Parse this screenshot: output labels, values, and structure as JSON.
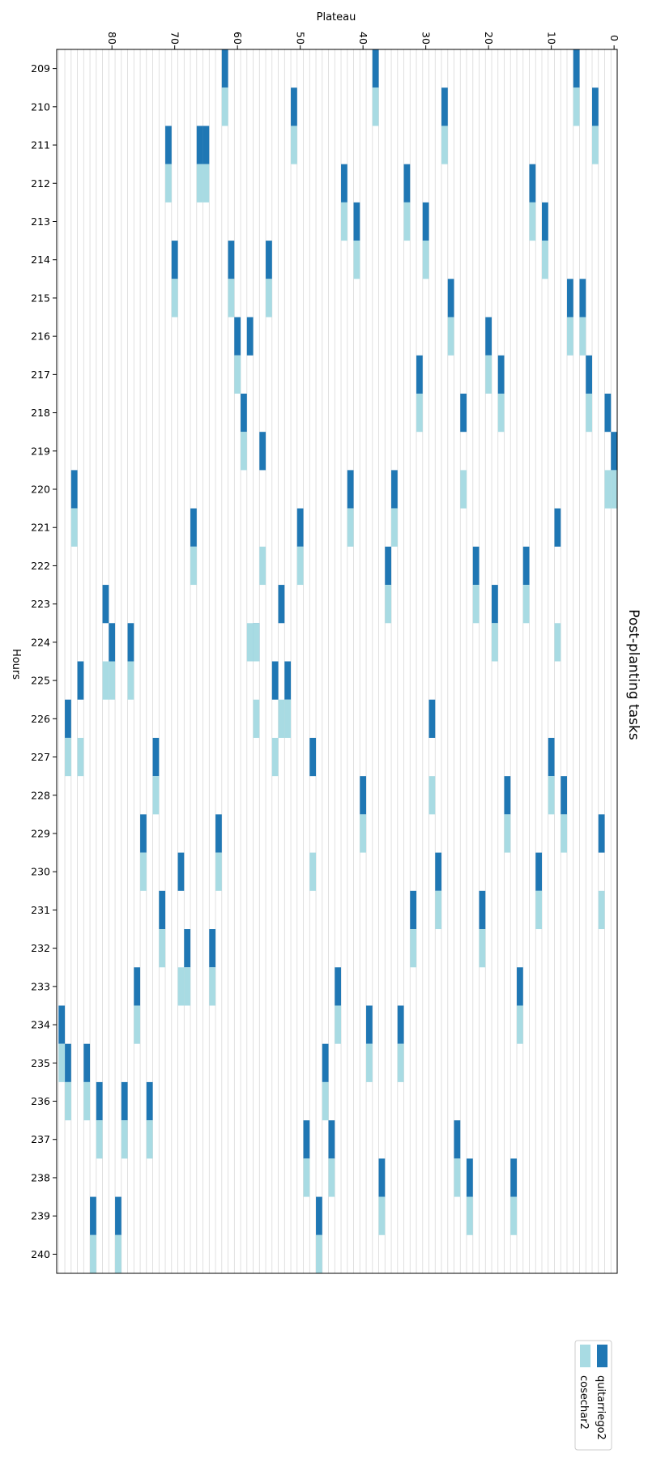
{
  "chart_data": {
    "type": "gantt",
    "title": "Post-planting tasks",
    "xlabel": "Plateau",
    "ylabel": "Hours",
    "orientation": "rotated-90-clockwise",
    "x_range": [
      0,
      88
    ],
    "x_ticks": [
      0,
      10,
      20,
      30,
      40,
      50,
      60,
      70,
      80
    ],
    "y_range": [
      208.5,
      240.5
    ],
    "y_ticks": [
      209,
      210,
      211,
      212,
      213,
      214,
      215,
      216,
      217,
      218,
      219,
      220,
      221,
      222,
      223,
      224,
      225,
      226,
      227,
      228,
      229,
      230,
      231,
      232,
      233,
      234,
      235,
      236,
      237,
      238,
      239,
      240
    ],
    "grid": "vertical-per-plateau",
    "legend_position": "lower-left",
    "colors": {
      "quitarriego2": "#1f77b4",
      "cosechar2": "#a8dbe3",
      "grid": "#d9d9d9"
    },
    "series": [
      {
        "name": "quitarriego2",
        "color": "#1f77b4",
        "tasks": [
          {
            "plateau": 6,
            "hour": 209
          },
          {
            "plateau": 38,
            "hour": 209
          },
          {
            "plateau": 62,
            "hour": 209
          },
          {
            "plateau": 3,
            "hour": 210
          },
          {
            "plateau": 27,
            "hour": 210
          },
          {
            "plateau": 51,
            "hour": 210
          },
          {
            "plateau": 65,
            "hour": 211
          },
          {
            "plateau": 66,
            "hour": 211
          },
          {
            "plateau": 71,
            "hour": 211
          },
          {
            "plateau": 13,
            "hour": 212
          },
          {
            "plateau": 33,
            "hour": 212
          },
          {
            "plateau": 43,
            "hour": 212
          },
          {
            "plateau": 11,
            "hour": 213
          },
          {
            "plateau": 30,
            "hour": 213
          },
          {
            "plateau": 41,
            "hour": 213
          },
          {
            "plateau": 55,
            "hour": 214
          },
          {
            "plateau": 61,
            "hour": 214
          },
          {
            "plateau": 70,
            "hour": 214
          },
          {
            "plateau": 5,
            "hour": 215
          },
          {
            "plateau": 7,
            "hour": 215
          },
          {
            "plateau": 26,
            "hour": 215
          },
          {
            "plateau": 20,
            "hour": 216
          },
          {
            "plateau": 58,
            "hour": 216
          },
          {
            "plateau": 60,
            "hour": 216
          },
          {
            "plateau": 4,
            "hour": 217
          },
          {
            "plateau": 18,
            "hour": 217
          },
          {
            "plateau": 31,
            "hour": 217
          },
          {
            "plateau": 1,
            "hour": 218
          },
          {
            "plateau": 24,
            "hour": 218
          },
          {
            "plateau": 59,
            "hour": 218
          },
          {
            "plateau": 0,
            "hour": 219
          },
          {
            "plateau": 56,
            "hour": 219
          },
          {
            "plateau": 35,
            "hour": 220
          },
          {
            "plateau": 42,
            "hour": 220
          },
          {
            "plateau": 86,
            "hour": 220
          },
          {
            "plateau": 9,
            "hour": 221
          },
          {
            "plateau": 50,
            "hour": 221
          },
          {
            "plateau": 67,
            "hour": 221
          },
          {
            "plateau": 14,
            "hour": 222
          },
          {
            "plateau": 22,
            "hour": 222
          },
          {
            "plateau": 36,
            "hour": 222
          },
          {
            "plateau": 19,
            "hour": 223
          },
          {
            "plateau": 53,
            "hour": 223
          },
          {
            "plateau": 81,
            "hour": 223
          },
          {
            "plateau": 57,
            "hour": 224
          },
          {
            "plateau": 77,
            "hour": 224
          },
          {
            "plateau": 80,
            "hour": 224
          },
          {
            "plateau": 52,
            "hour": 225
          },
          {
            "plateau": 54,
            "hour": 225
          },
          {
            "plateau": 85,
            "hour": 225
          },
          {
            "plateau": 29,
            "hour": 226
          },
          {
            "plateau": 87,
            "hour": 226
          },
          {
            "plateau": 10,
            "hour": 227
          },
          {
            "plateau": 48,
            "hour": 227
          },
          {
            "plateau": 73,
            "hour": 227
          },
          {
            "plateau": 8,
            "hour": 228
          },
          {
            "plateau": 17,
            "hour": 228
          },
          {
            "plateau": 40,
            "hour": 228
          },
          {
            "plateau": 2,
            "hour": 229
          },
          {
            "plateau": 63,
            "hour": 229
          },
          {
            "plateau": 75,
            "hour": 229
          },
          {
            "plateau": 12,
            "hour": 230
          },
          {
            "plateau": 28,
            "hour": 230
          },
          {
            "plateau": 69,
            "hour": 230
          },
          {
            "plateau": 21,
            "hour": 231
          },
          {
            "plateau": 32,
            "hour": 231
          },
          {
            "plateau": 72,
            "hour": 231
          },
          {
            "plateau": 64,
            "hour": 232
          },
          {
            "plateau": 68,
            "hour": 232
          },
          {
            "plateau": 15,
            "hour": 233
          },
          {
            "plateau": 44,
            "hour": 233
          },
          {
            "plateau": 76,
            "hour": 233
          },
          {
            "plateau": 34,
            "hour": 234
          },
          {
            "plateau": 39,
            "hour": 234
          },
          {
            "plateau": 88,
            "hour": 234
          },
          {
            "plateau": 46,
            "hour": 235
          },
          {
            "plateau": 84,
            "hour": 235
          },
          {
            "plateau": 87,
            "hour": 235
          },
          {
            "plateau": 74,
            "hour": 236
          },
          {
            "plateau": 78,
            "hour": 236
          },
          {
            "plateau": 82,
            "hour": 236
          },
          {
            "plateau": 25,
            "hour": 237
          },
          {
            "plateau": 45,
            "hour": 237
          },
          {
            "plateau": 49,
            "hour": 237
          },
          {
            "plateau": 16,
            "hour": 238
          },
          {
            "plateau": 23,
            "hour": 238
          },
          {
            "plateau": 37,
            "hour": 238
          },
          {
            "plateau": 47,
            "hour": 239
          },
          {
            "plateau": 79,
            "hour": 239
          },
          {
            "plateau": 83,
            "hour": 239
          }
        ]
      },
      {
        "name": "cosechar2",
        "color": "#a8dbe3",
        "tasks": [
          {
            "plateau": 6,
            "hour": 210
          },
          {
            "plateau": 38,
            "hour": 210
          },
          {
            "plateau": 62,
            "hour": 210
          },
          {
            "plateau": 3,
            "hour": 211
          },
          {
            "plateau": 27,
            "hour": 211
          },
          {
            "plateau": 51,
            "hour": 211
          },
          {
            "plateau": 65,
            "hour": 212
          },
          {
            "plateau": 66,
            "hour": 212
          },
          {
            "plateau": 71,
            "hour": 212
          },
          {
            "plateau": 13,
            "hour": 213
          },
          {
            "plateau": 33,
            "hour": 213
          },
          {
            "plateau": 43,
            "hour": 213
          },
          {
            "plateau": 11,
            "hour": 214
          },
          {
            "plateau": 30,
            "hour": 214
          },
          {
            "plateau": 41,
            "hour": 214
          },
          {
            "plateau": 55,
            "hour": 215
          },
          {
            "plateau": 61,
            "hour": 215
          },
          {
            "plateau": 70,
            "hour": 215
          },
          {
            "plateau": 5,
            "hour": 216
          },
          {
            "plateau": 7,
            "hour": 216
          },
          {
            "plateau": 26,
            "hour": 216
          },
          {
            "plateau": 20,
            "hour": 217
          },
          {
            "plateau": 60,
            "hour": 217
          },
          {
            "plateau": 4,
            "hour": 218
          },
          {
            "plateau": 18,
            "hour": 218
          },
          {
            "plateau": 31,
            "hour": 218
          },
          {
            "plateau": 59,
            "hour": 219
          },
          {
            "plateau": 0,
            "hour": 220
          },
          {
            "plateau": 1,
            "hour": 220
          },
          {
            "plateau": 24,
            "hour": 220
          },
          {
            "plateau": 35,
            "hour": 221
          },
          {
            "plateau": 42,
            "hour": 221
          },
          {
            "plateau": 86,
            "hour": 221
          },
          {
            "plateau": 50,
            "hour": 222
          },
          {
            "plateau": 56,
            "hour": 222
          },
          {
            "plateau": 67,
            "hour": 222
          },
          {
            "plateau": 14,
            "hour": 223
          },
          {
            "plateau": 22,
            "hour": 223
          },
          {
            "plateau": 36,
            "hour": 223
          },
          {
            "plateau": 9,
            "hour": 224
          },
          {
            "plateau": 19,
            "hour": 224
          },
          {
            "plateau": 57,
            "hour": 224
          },
          {
            "plateau": 58,
            "hour": 224
          },
          {
            "plateau": 77,
            "hour": 225
          },
          {
            "plateau": 80,
            "hour": 225
          },
          {
            "plateau": 81,
            "hour": 225
          },
          {
            "plateau": 52,
            "hour": 226
          },
          {
            "plateau": 53,
            "hour": 226
          },
          {
            "plateau": 57,
            "hour": 226
          },
          {
            "plateau": 54,
            "hour": 227
          },
          {
            "plateau": 85,
            "hour": 227
          },
          {
            "plateau": 87,
            "hour": 227
          },
          {
            "plateau": 10,
            "hour": 228
          },
          {
            "plateau": 29,
            "hour": 228
          },
          {
            "plateau": 73,
            "hour": 228
          },
          {
            "plateau": 8,
            "hour": 229
          },
          {
            "plateau": 17,
            "hour": 229
          },
          {
            "plateau": 40,
            "hour": 229
          },
          {
            "plateau": 48,
            "hour": 230
          },
          {
            "plateau": 63,
            "hour": 230
          },
          {
            "plateau": 75,
            "hour": 230
          },
          {
            "plateau": 2,
            "hour": 231
          },
          {
            "plateau": 12,
            "hour": 231
          },
          {
            "plateau": 28,
            "hour": 231
          },
          {
            "plateau": 21,
            "hour": 232
          },
          {
            "plateau": 32,
            "hour": 232
          },
          {
            "plateau": 72,
            "hour": 232
          },
          {
            "plateau": 64,
            "hour": 233
          },
          {
            "plateau": 68,
            "hour": 233
          },
          {
            "plateau": 69,
            "hour": 233
          },
          {
            "plateau": 15,
            "hour": 234
          },
          {
            "plateau": 44,
            "hour": 234
          },
          {
            "plateau": 76,
            "hour": 234
          },
          {
            "plateau": 34,
            "hour": 235
          },
          {
            "plateau": 39,
            "hour": 235
          },
          {
            "plateau": 88,
            "hour": 235
          },
          {
            "plateau": 46,
            "hour": 236
          },
          {
            "plateau": 84,
            "hour": 236
          },
          {
            "plateau": 87,
            "hour": 236
          },
          {
            "plateau": 74,
            "hour": 237
          },
          {
            "plateau": 78,
            "hour": 237
          },
          {
            "plateau": 82,
            "hour": 237
          },
          {
            "plateau": 25,
            "hour": 238
          },
          {
            "plateau": 45,
            "hour": 238
          },
          {
            "plateau": 49,
            "hour": 238
          },
          {
            "plateau": 16,
            "hour": 239
          },
          {
            "plateau": 23,
            "hour": 239
          },
          {
            "plateau": 37,
            "hour": 239
          },
          {
            "plateau": 47,
            "hour": 240
          },
          {
            "plateau": 79,
            "hour": 240
          },
          {
            "plateau": 83,
            "hour": 240
          }
        ]
      }
    ]
  }
}
